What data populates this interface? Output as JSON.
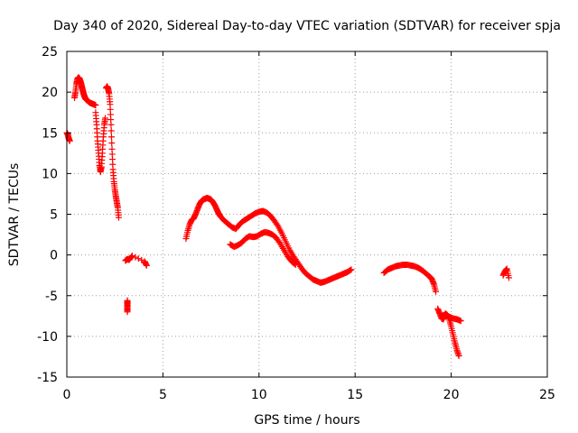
{
  "chart_data": {
    "type": "scatter",
    "title": "Day 340 of 2020, Sidereal Day-to-day VTEC variation (SDTVAR) for receiver spja",
    "xlabel": "GPS time / hours",
    "ylabel": "SDTVAR / TECUs",
    "xlim": [
      0,
      25
    ],
    "ylim": [
      -15,
      25
    ],
    "xticks": [
      0,
      5,
      10,
      15,
      20,
      25
    ],
    "yticks": [
      -15,
      -10,
      -5,
      0,
      5,
      10,
      15,
      20,
      25
    ],
    "xtick_labels": [
      "0",
      "5",
      "10",
      "15",
      "20",
      "25"
    ],
    "ytick_labels": [
      "-15",
      "-10",
      "-5",
      "0",
      "5",
      "10",
      "15",
      "20",
      "25"
    ],
    "grid": true,
    "marker": "+",
    "colors": {
      "marker": "#ff0000",
      "grid": "#a0a0a0",
      "axis": "#000000"
    },
    "series": [
      {
        "name": "SDTVAR",
        "segments": [
          {
            "x": [
              0.0,
              0.05,
              0.1,
              0.15
            ],
            "y": [
              15.0,
              14.8,
              14.3,
              14.0
            ]
          },
          {
            "x": [
              0.4,
              0.45,
              0.5,
              0.55,
              0.6,
              0.65,
              0.7,
              0.75,
              0.8,
              0.85,
              0.9,
              0.95,
              1.0,
              1.1,
              1.2,
              1.3,
              1.4,
              1.5
            ],
            "y": [
              19.3,
              20.0,
              21.0,
              21.6,
              21.8,
              21.7,
              21.4,
              21.0,
              20.5,
              20.0,
              19.6,
              19.3,
              19.1,
              18.9,
              18.7,
              18.6,
              18.5,
              18.4
            ]
          },
          {
            "x": [
              1.5,
              1.55,
              1.6,
              1.65,
              1.7,
              1.75,
              1.8,
              1.85,
              1.9,
              1.95,
              2.0
            ],
            "y": [
              17.5,
              16.0,
              14.0,
              12.5,
              11.0,
              10.2,
              10.8,
              12.5,
              14.5,
              16.0,
              16.8
            ]
          },
          {
            "x": [
              2.05,
              2.1,
              2.15,
              2.2,
              2.25,
              2.3,
              2.35,
              2.4,
              2.45,
              2.5,
              2.55,
              2.6,
              2.65,
              2.7
            ],
            "y": [
              20.5,
              20.7,
              20.4,
              19.8,
              18.5,
              16.0,
              13.0,
              10.5,
              9.0,
              8.0,
              7.2,
              6.5,
              5.8,
              4.6
            ]
          },
          {
            "x": [
              3.05,
              3.15,
              3.25,
              3.4,
              4.05,
              4.15
            ],
            "y": [
              -0.7,
              -0.5,
              -0.6,
              -0.1,
              -0.8,
              -1.3
            ]
          },
          {
            "x": [
              3.15,
              3.15,
              3.15,
              3.15
            ],
            "y": [
              -5.6,
              -6.0,
              -6.5,
              -7.0
            ]
          },
          {
            "x": [
              6.2,
              6.3,
              6.4,
              6.5,
              6.6,
              6.7,
              6.8,
              6.9,
              7.0,
              7.1,
              7.2,
              7.3,
              7.4,
              7.5,
              7.6,
              7.7,
              7.8,
              7.9,
              8.0,
              8.2,
              8.4,
              8.6,
              8.8,
              9.0,
              9.2,
              9.4,
              9.6,
              9.8,
              10.0,
              10.2,
              10.4,
              10.6,
              10.8,
              11.0,
              11.2,
              11.4,
              11.6,
              11.8,
              12.0,
              12.2,
              12.4,
              12.6,
              12.8,
              13.0,
              13.2
            ],
            "y": [
              2.0,
              3.0,
              3.8,
              4.3,
              4.5,
              5.0,
              5.6,
              6.2,
              6.6,
              6.8,
              6.9,
              7.0,
              6.9,
              6.8,
              6.5,
              6.1,
              5.6,
              5.1,
              4.7,
              4.2,
              3.8,
              3.4,
              3.2,
              3.8,
              4.2,
              4.5,
              4.8,
              5.1,
              5.3,
              5.4,
              5.2,
              4.8,
              4.2,
              3.5,
              2.6,
              1.6,
              0.6,
              -0.2,
              -0.9,
              -1.6,
              -2.2,
              -2.6,
              -3.0,
              -3.2,
              -3.4
            ]
          },
          {
            "x": [
              8.5,
              8.7,
              8.9,
              9.1,
              9.3,
              9.5,
              9.7,
              9.9,
              10.1,
              10.3,
              10.5,
              10.7,
              10.9,
              11.1,
              11.3,
              11.5,
              11.7,
              11.9
            ],
            "y": [
              1.3,
              1.0,
              1.2,
              1.5,
              2.0,
              2.3,
              2.2,
              2.3,
              2.6,
              2.8,
              2.7,
              2.5,
              2.1,
              1.4,
              0.6,
              -0.2,
              -0.8,
              -1.2
            ]
          },
          {
            "x": [
              13.2,
              13.4,
              13.6,
              13.8,
              14.0,
              14.2,
              14.4,
              14.6,
              14.8
            ],
            "y": [
              -3.4,
              -3.3,
              -3.1,
              -2.9,
              -2.7,
              -2.5,
              -2.3,
              -2.1,
              -1.8
            ]
          },
          {
            "x": [
              16.5,
              16.7,
              16.9,
              17.1,
              17.3,
              17.5,
              17.7,
              17.9,
              18.1,
              18.3,
              18.5,
              18.7,
              18.9,
              19.0,
              19.1,
              19.2
            ],
            "y": [
              -2.2,
              -1.8,
              -1.6,
              -1.4,
              -1.3,
              -1.2,
              -1.2,
              -1.3,
              -1.4,
              -1.6,
              -1.9,
              -2.3,
              -2.7,
              -3.0,
              -3.6,
              -4.5
            ]
          },
          {
            "x": [
              19.3,
              19.4,
              19.5,
              19.6,
              19.7,
              19.8,
              19.9,
              20.0,
              20.1,
              20.2,
              20.3,
              20.4
            ],
            "y": [
              -6.6,
              -7.2,
              -7.8,
              -7.9,
              -7.2,
              -7.4,
              -7.9,
              -8.8,
              -9.8,
              -10.8,
              -11.7,
              -12.4
            ]
          },
          {
            "x": [
              19.5,
              19.7,
              19.9,
              20.1,
              20.3,
              20.5
            ],
            "y": [
              -7.5,
              -7.3,
              -7.6,
              -7.8,
              -7.9,
              -8.1
            ]
          },
          {
            "x": [
              22.7,
              22.8,
              22.9,
              23.0
            ],
            "y": [
              -2.5,
              -2.0,
              -1.7,
              -2.8
            ]
          }
        ]
      }
    ]
  }
}
